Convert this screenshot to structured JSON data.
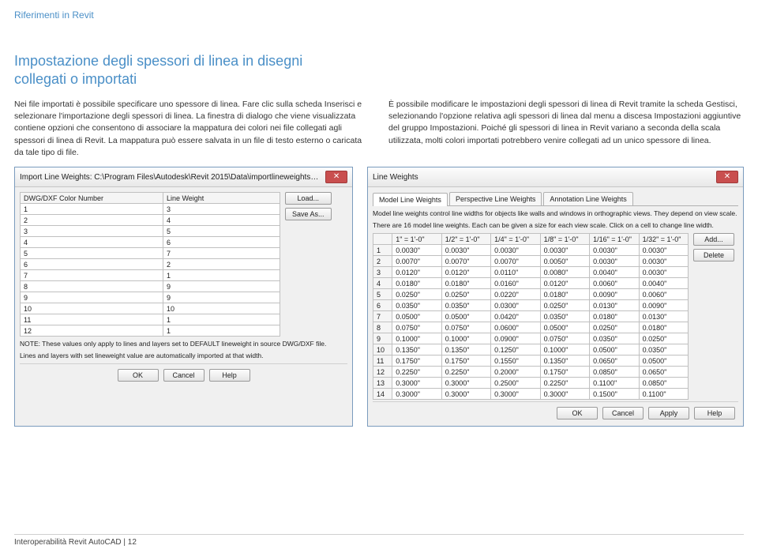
{
  "breadcrumb": "Riferimenti in Revit",
  "title_line1": "Impostazione degli spessori di linea in disegni",
  "title_line2": "collegati o importati",
  "paragraph_left": "Nei file importati è possibile specificare uno spessore di linea. Fare clic sulla scheda Inserisci e selezionare l'importazione degli spessori di linea. La finestra di dialogo che viene visualizzata contiene opzioni che consentono di associare la mappatura dei colori nei file collegati agli spessori di linea di Revit. La mappatura può essere salvata in un file di testo esterno o caricata da tale tipo di file.",
  "paragraph_right": "È possibile modificare le impostazioni degli spessori di linea di Revit tramite la scheda Gestisci, selezionando l'opzione relativa agli spessori di linea dal menu a discesa Impostazioni aggiuntive del gruppo Impostazioni. Poiché gli spessori di linea in Revit variano a seconda della scala utilizzata, molti colori importati potrebbero venire collegati ad un unico spessore di linea.",
  "dlg1": {
    "title": "Import Line Weights: C:\\Program Files\\Autodesk\\Revit 2015\\Data\\importlineweights-dwg-AIA.txt",
    "col1": "DWG/DXF Color Number",
    "col2": "Line Weight",
    "rows": [
      [
        "1",
        "3"
      ],
      [
        "2",
        "4"
      ],
      [
        "3",
        "5"
      ],
      [
        "4",
        "6"
      ],
      [
        "5",
        "7"
      ],
      [
        "6",
        "2"
      ],
      [
        "7",
        "1"
      ],
      [
        "8",
        "9"
      ],
      [
        "9",
        "9"
      ],
      [
        "10",
        "10"
      ],
      [
        "11",
        "1"
      ],
      [
        "12",
        "1"
      ]
    ],
    "load": "Load...",
    "saveas": "Save As...",
    "note1": "NOTE: These values only apply to lines and layers set to DEFAULT lineweight in source DWG/DXF file.",
    "note2": "Lines and layers with set lineweight value are automatically imported at that width.",
    "ok": "OK",
    "cancel": "Cancel",
    "help": "Help"
  },
  "dlg2": {
    "title": "Line Weights",
    "tab1": "Model Line Weights",
    "tab2": "Perspective Line Weights",
    "tab3": "Annotation Line Weights",
    "hint1": "Model line weights control line widths for objects like walls and windows in orthographic views. They depend on view scale.",
    "hint2": "There are 16 model line weights. Each can be given a size for each view scale. Click on a cell to change line width.",
    "headers": [
      "",
      "1\" = 1'-0\"",
      "1/2\" = 1'-0\"",
      "1/4\" = 1'-0\"",
      "1/8\" = 1'-0\"",
      "1/16\" = 1'-0\"",
      "1/32\" = 1'-0\""
    ],
    "rows": [
      [
        "1",
        "0.0030\"",
        "0.0030\"",
        "0.0030\"",
        "0.0030\"",
        "0.0030\"",
        "0.0030\""
      ],
      [
        "2",
        "0.0070\"",
        "0.0070\"",
        "0.0070\"",
        "0.0050\"",
        "0.0030\"",
        "0.0030\""
      ],
      [
        "3",
        "0.0120\"",
        "0.0120\"",
        "0.0110\"",
        "0.0080\"",
        "0.0040\"",
        "0.0030\""
      ],
      [
        "4",
        "0.0180\"",
        "0.0180\"",
        "0.0160\"",
        "0.0120\"",
        "0.0060\"",
        "0.0040\""
      ],
      [
        "5",
        "0.0250\"",
        "0.0250\"",
        "0.0220\"",
        "0.0180\"",
        "0.0090\"",
        "0.0060\""
      ],
      [
        "6",
        "0.0350\"",
        "0.0350\"",
        "0.0300\"",
        "0.0250\"",
        "0.0130\"",
        "0.0090\""
      ],
      [
        "7",
        "0.0500\"",
        "0.0500\"",
        "0.0420\"",
        "0.0350\"",
        "0.0180\"",
        "0.0130\""
      ],
      [
        "8",
        "0.0750\"",
        "0.0750\"",
        "0.0600\"",
        "0.0500\"",
        "0.0250\"",
        "0.0180\""
      ],
      [
        "9",
        "0.1000\"",
        "0.1000\"",
        "0.0900\"",
        "0.0750\"",
        "0.0350\"",
        "0.0250\""
      ],
      [
        "10",
        "0.1350\"",
        "0.1350\"",
        "0.1250\"",
        "0.1000\"",
        "0.0500\"",
        "0.0350\""
      ],
      [
        "11",
        "0.1750\"",
        "0.1750\"",
        "0.1550\"",
        "0.1350\"",
        "0.0650\"",
        "0.0500\""
      ],
      [
        "12",
        "0.2250\"",
        "0.2250\"",
        "0.2000\"",
        "0.1750\"",
        "0.0850\"",
        "0.0650\""
      ],
      [
        "13",
        "0.3000\"",
        "0.3000\"",
        "0.2500\"",
        "0.2250\"",
        "0.1100\"",
        "0.0850\""
      ],
      [
        "14",
        "0.3000\"",
        "0.3000\"",
        "0.3000\"",
        "0.3000\"",
        "0.1500\"",
        "0.1100\""
      ]
    ],
    "add": "Add...",
    "delete": "Delete",
    "ok": "OK",
    "cancel": "Cancel",
    "apply": "Apply",
    "help": "Help"
  },
  "footer_text": "Interoperabilità Revit AutoCAD   |   12"
}
